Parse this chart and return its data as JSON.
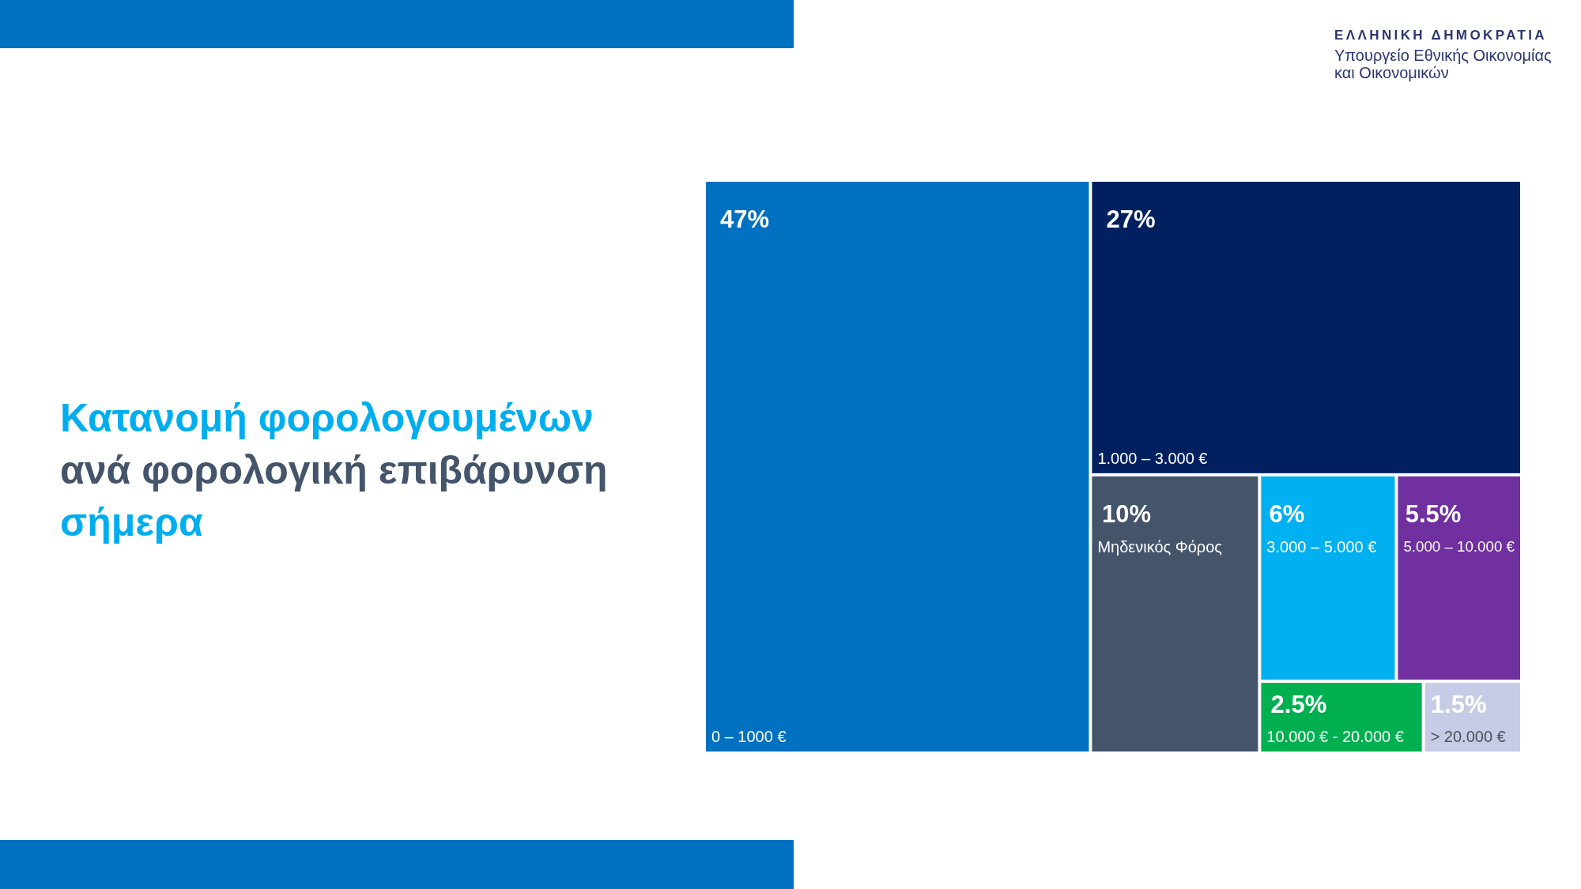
{
  "chart_data": {
    "type": "other",
    "title": "Κατανομή φορολογουμένων ανά φορολογική επιβάρυνση σήμερα",
    "categories": [
      "0 – 1000 €",
      "1.000 – 3.000 €",
      "Μηδενικός Φόρος",
      "3.000 – 5.000 €",
      "5.000 – 10.000 €",
      "10.000 € - 20.000 €",
      "> 20.000 €"
    ],
    "values": [
      47,
      27,
      10,
      6,
      5.5,
      2.5,
      1.5
    ],
    "value_labels": [
      "47%",
      "27%",
      "10%",
      "6%",
      "5.5%",
      "2.5%",
      "1.5%"
    ],
    "colors": [
      "#0070c0",
      "#002060",
      "#44546a",
      "#00b0f0",
      "#7030a0",
      "#00b050",
      "#c6cce6"
    ],
    "annotations": [
      "ΕΛΛΗΝΙΚΗ ΔΗΜΟΚΡΑΤΙΑ",
      "Υπουργείο Εθνικής Οικονομίας και Οικονομικών"
    ]
  }
}
